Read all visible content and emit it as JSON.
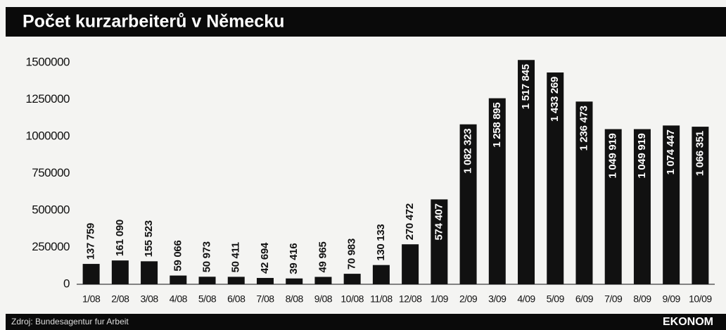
{
  "chart_data": {
    "type": "bar",
    "title": "Počet kurzarbeiterů v Německu",
    "source": "Zdroj: Bundesagentur fur Arbeit",
    "brand": "EKONOM",
    "categories": [
      "1/08",
      "2/08",
      "3/08",
      "4/08",
      "5/08",
      "6/08",
      "7/08",
      "8/08",
      "9/08",
      "10/08",
      "11/08",
      "12/08",
      "1/09",
      "2/09",
      "3/09",
      "4/09",
      "5/09",
      "6/09",
      "7/09",
      "8/09",
      "9/09",
      "10/09"
    ],
    "values": [
      137759,
      161090,
      155523,
      59066,
      50973,
      50411,
      42694,
      39416,
      49965,
      70983,
      130133,
      270472,
      574407,
      1082323,
      1258895,
      1517845,
      1433269,
      1236473,
      1049919,
      1049919,
      1074447,
      1066351
    ],
    "value_labels": [
      "137 759",
      "161 090",
      "155 523",
      "59 066",
      "50 973",
      "50 411",
      "42 694",
      "39 416",
      "49 965",
      "70 983",
      "130 133",
      "270 472",
      "574 407",
      "1 082 323",
      "1 258 895",
      "1 517 845",
      "1 433 269",
      "1 236 473",
      "1 049 919",
      "1 049 919",
      "1 074 447",
      "1 066 351"
    ],
    "color": "#111111",
    "ylim": [
      0,
      1550000
    ],
    "yticks": [
      0,
      250000,
      500000,
      750000,
      1000000,
      1250000,
      1500000
    ],
    "grid": false
  }
}
